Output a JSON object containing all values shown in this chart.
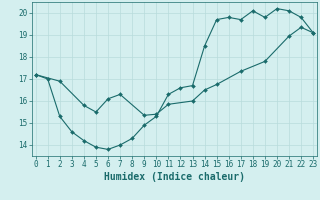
{
  "xlabel": "Humidex (Indice chaleur)",
  "bg_color": "#d4efef",
  "grid_color": "#b8dcdc",
  "line_color": "#1a6b6b",
  "line1_x": [
    0,
    1,
    2,
    3,
    4,
    5,
    6,
    7,
    8,
    9,
    10,
    11,
    12,
    13,
    14,
    15,
    16,
    17,
    18,
    19,
    20,
    21,
    22,
    23
  ],
  "line1_y": [
    17.2,
    17.0,
    15.3,
    14.6,
    14.2,
    13.9,
    13.8,
    14.0,
    14.3,
    14.9,
    15.3,
    16.3,
    16.6,
    16.7,
    18.5,
    19.7,
    19.8,
    19.7,
    20.1,
    19.8,
    20.2,
    20.1,
    19.8,
    19.1
  ],
  "line2_x": [
    0,
    2,
    4,
    5,
    6,
    7,
    9,
    10,
    11,
    13,
    14,
    15,
    17,
    19,
    21,
    22,
    23
  ],
  "line2_y": [
    17.2,
    16.9,
    15.8,
    15.5,
    16.1,
    16.3,
    15.35,
    15.4,
    15.85,
    16.0,
    16.5,
    16.75,
    17.35,
    17.8,
    18.95,
    19.35,
    19.1
  ],
  "xlim": [
    -0.3,
    23.3
  ],
  "ylim": [
    13.5,
    20.5
  ],
  "xticks": [
    0,
    1,
    2,
    3,
    4,
    5,
    6,
    7,
    8,
    9,
    10,
    11,
    12,
    13,
    14,
    15,
    16,
    17,
    18,
    19,
    20,
    21,
    22,
    23
  ],
  "yticks": [
    14,
    15,
    16,
    17,
    18,
    19,
    20
  ],
  "marker": "D",
  "markersize": 2.0,
  "linewidth": 0.8,
  "xlabel_fontsize": 7,
  "tick_fontsize": 5.5
}
